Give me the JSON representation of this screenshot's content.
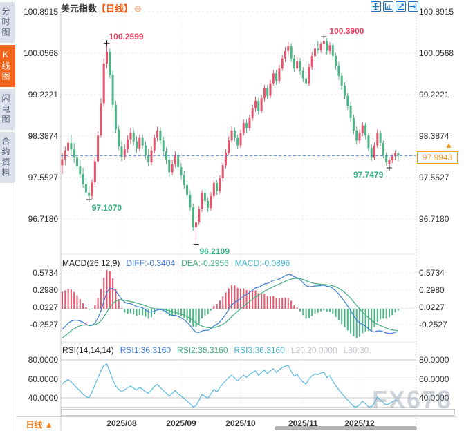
{
  "sidebar": {
    "tabs": [
      {
        "label": "分时图",
        "active": false
      },
      {
        "label": "K线图",
        "active": true
      },
      {
        "label": "闪电图",
        "active": false
      },
      {
        "label": "合约资料",
        "active": false
      }
    ]
  },
  "header": {
    "title": "美元指数",
    "period_tag": "【日线】",
    "collapse_icon": "⊖"
  },
  "toolbar": {
    "icons": [
      "move-tool",
      "axis-scale-tool",
      "axis-zoom-tool",
      "goto-latest-tool"
    ]
  },
  "price_label": {
    "value": "97.9943"
  },
  "bottom_bar": {
    "period_label": "日线",
    "arrow": "▲"
  },
  "watermark": "FX678",
  "colors": {
    "up": "#e4546b",
    "down": "#4bb584",
    "diff_line": "#3a7bd5",
    "dea_line": "#3fae7e",
    "rsi_line": "#54b8e4",
    "accent_orange": "#f59a21",
    "active_tab": "#f2631c",
    "tool_blue": "#1a6fc0",
    "annotation_red": "#e8415f",
    "annotation_green": "#2fb07e",
    "price_line": "#2a7fe0"
  },
  "chart_data": [
    {
      "type": "candlestick",
      "title": "美元指数 日线",
      "yticks": [
        "100.8915",
        "100.0568",
        "99.2221",
        "98.3874",
        "97.5527",
        "96.7180"
      ],
      "ylim": [
        96.05,
        100.93
      ],
      "current_price": 97.9943,
      "xticks": [
        "2025/08",
        "2025/09",
        "2025/10",
        "2025/11",
        "2025/12"
      ],
      "month_start_indices": [
        20,
        40,
        60,
        81,
        100
      ],
      "annotations": [
        {
          "label": "100.2599",
          "index": 15,
          "price": 100.2599,
          "kind": "high"
        },
        {
          "label": "97.1070",
          "index": 9,
          "price": 97.107,
          "kind": "low"
        },
        {
          "label": "96.2109",
          "index": 45,
          "price": 96.2109,
          "kind": "low"
        },
        {
          "label": "100.3900",
          "index": 88,
          "price": 100.39,
          "kind": "high"
        },
        {
          "label": "97.7479",
          "index": 110,
          "price": 97.7479,
          "kind": "low"
        }
      ],
      "candles": [
        [
          97.8,
          98.05,
          97.62,
          97.92
        ],
        [
          97.92,
          98.18,
          97.8,
          98.1
        ],
        [
          98.1,
          98.32,
          97.95,
          98.25
        ],
        [
          98.25,
          98.42,
          98.02,
          98.12
        ],
        [
          98.12,
          98.25,
          97.85,
          97.95
        ],
        [
          97.95,
          98.1,
          97.7,
          97.78
        ],
        [
          97.78,
          97.92,
          97.55,
          97.62
        ],
        [
          97.62,
          97.75,
          97.35,
          97.42
        ],
        [
          97.42,
          97.55,
          97.18,
          97.25
        ],
        [
          97.25,
          97.38,
          97.107,
          97.18
        ],
        [
          97.18,
          97.52,
          97.12,
          97.45
        ],
        [
          97.45,
          97.95,
          97.4,
          97.88
        ],
        [
          97.88,
          98.48,
          97.82,
          98.4
        ],
        [
          98.4,
          99.15,
          98.35,
          99.05
        ],
        [
          99.05,
          99.95,
          98.98,
          99.85
        ],
        [
          99.85,
          100.2599,
          99.75,
          100.08
        ],
        [
          100.08,
          100.15,
          99.55,
          99.62
        ],
        [
          99.62,
          99.7,
          98.95,
          99.02
        ],
        [
          99.02,
          99.1,
          98.45,
          98.52
        ],
        [
          98.52,
          98.6,
          98.1,
          98.18
        ],
        [
          98.18,
          98.3,
          97.88,
          97.96
        ],
        [
          97.96,
          98.22,
          97.9,
          98.12
        ],
        [
          98.12,
          98.4,
          98.05,
          98.32
        ],
        [
          98.32,
          98.55,
          98.22,
          98.46
        ],
        [
          98.46,
          98.52,
          98.2,
          98.28
        ],
        [
          98.28,
          98.38,
          98.05,
          98.14
        ],
        [
          98.14,
          98.42,
          98.08,
          98.35
        ],
        [
          98.35,
          98.42,
          98.12,
          98.2
        ],
        [
          98.2,
          98.28,
          97.92,
          98.0
        ],
        [
          98.0,
          98.12,
          97.78,
          97.86
        ],
        [
          97.86,
          98.18,
          97.8,
          98.1
        ],
        [
          98.1,
          98.42,
          98.04,
          98.35
        ],
        [
          98.35,
          98.58,
          98.28,
          98.5
        ],
        [
          98.5,
          98.56,
          98.22,
          98.3
        ],
        [
          98.3,
          98.38,
          98.0,
          98.08
        ],
        [
          98.08,
          98.16,
          97.82,
          97.9
        ],
        [
          97.9,
          97.98,
          97.58,
          97.66
        ],
        [
          97.66,
          97.9,
          97.6,
          97.82
        ],
        [
          97.82,
          98.08,
          97.76,
          98.0
        ],
        [
          98.0,
          98.06,
          97.7,
          97.76
        ],
        [
          97.76,
          97.84,
          97.52,
          97.6
        ],
        [
          97.6,
          97.68,
          97.32,
          97.4
        ],
        [
          97.4,
          97.48,
          97.12,
          97.2
        ],
        [
          97.2,
          97.28,
          96.88,
          96.95
        ],
        [
          96.95,
          97.02,
          96.48,
          96.55
        ],
        [
          96.55,
          96.7,
          96.2109,
          96.65
        ],
        [
          96.65,
          96.98,
          96.6,
          96.92
        ],
        [
          96.92,
          97.3,
          96.86,
          97.24
        ],
        [
          97.24,
          97.34,
          97.0,
          97.08
        ],
        [
          97.08,
          97.16,
          96.86,
          96.94
        ],
        [
          96.94,
          97.26,
          96.88,
          97.18
        ],
        [
          97.18,
          97.5,
          97.12,
          97.44
        ],
        [
          97.44,
          97.5,
          97.2,
          97.28
        ],
        [
          97.28,
          97.6,
          97.22,
          97.54
        ],
        [
          97.54,
          97.86,
          97.48,
          97.8
        ],
        [
          97.8,
          98.12,
          97.74,
          98.05
        ],
        [
          98.05,
          98.38,
          98.0,
          98.3
        ],
        [
          98.3,
          98.58,
          98.25,
          98.5
        ],
        [
          98.5,
          98.56,
          98.28,
          98.35
        ],
        [
          98.35,
          98.42,
          98.12,
          98.2
        ],
        [
          98.2,
          98.52,
          98.15,
          98.45
        ],
        [
          98.45,
          98.72,
          98.4,
          98.65
        ],
        [
          98.65,
          98.72,
          98.45,
          98.55
        ],
        [
          98.55,
          98.82,
          98.5,
          98.75
        ],
        [
          98.75,
          99.02,
          98.7,
          98.95
        ],
        [
          98.95,
          99.18,
          98.88,
          99.1
        ],
        [
          99.1,
          99.16,
          98.82,
          98.9
        ],
        [
          98.9,
          99.22,
          98.85,
          99.15
        ],
        [
          99.15,
          99.42,
          99.08,
          99.35
        ],
        [
          99.35,
          99.42,
          99.12,
          99.2
        ],
        [
          99.2,
          99.52,
          99.15,
          99.45
        ],
        [
          99.45,
          99.72,
          99.4,
          99.65
        ],
        [
          99.65,
          99.72,
          99.42,
          99.5
        ],
        [
          99.5,
          99.82,
          99.45,
          99.75
        ],
        [
          99.75,
          100.02,
          99.7,
          99.95
        ],
        [
          99.95,
          100.18,
          99.88,
          100.1
        ],
        [
          100.1,
          100.28,
          100.02,
          100.2
        ],
        [
          100.2,
          100.26,
          99.88,
          99.95
        ],
        [
          99.95,
          100.02,
          99.68,
          99.75
        ],
        [
          99.75,
          99.98,
          99.7,
          99.9
        ],
        [
          99.9,
          99.96,
          99.62,
          99.7
        ],
        [
          99.7,
          99.78,
          99.48,
          99.55
        ],
        [
          99.55,
          99.62,
          99.38,
          99.45
        ],
        [
          99.45,
          99.85,
          99.4,
          99.78
        ],
        [
          99.78,
          100.08,
          99.72,
          100.0
        ],
        [
          100.0,
          100.22,
          99.95,
          100.15
        ],
        [
          100.15,
          100.3,
          100.05,
          100.12
        ],
        [
          100.12,
          100.28,
          100.06,
          100.24
        ],
        [
          100.24,
          100.39,
          100.1,
          100.3
        ],
        [
          100.3,
          100.36,
          100.02,
          100.1
        ],
        [
          100.1,
          100.28,
          100.04,
          100.22
        ],
        [
          100.22,
          100.26,
          99.92,
          100.0
        ],
        [
          100.0,
          100.06,
          99.72,
          99.8
        ],
        [
          99.8,
          99.88,
          99.52,
          99.6
        ],
        [
          99.6,
          99.66,
          99.32,
          99.4
        ],
        [
          99.4,
          99.48,
          99.12,
          99.2
        ],
        [
          99.2,
          99.26,
          98.92,
          99.0
        ],
        [
          99.0,
          99.08,
          98.68,
          98.75
        ],
        [
          98.75,
          98.82,
          98.42,
          98.5
        ],
        [
          98.5,
          98.58,
          98.22,
          98.3
        ],
        [
          98.3,
          98.52,
          98.24,
          98.45
        ],
        [
          98.45,
          98.68,
          98.38,
          98.6
        ],
        [
          98.6,
          98.66,
          98.32,
          98.4
        ],
        [
          98.4,
          98.46,
          98.08,
          98.15
        ],
        [
          98.15,
          98.22,
          97.88,
          97.95
        ],
        [
          97.95,
          98.26,
          97.9,
          98.2
        ],
        [
          98.2,
          98.52,
          98.15,
          98.45
        ],
        [
          98.45,
          98.5,
          98.18,
          98.25
        ],
        [
          98.25,
          98.3,
          97.94,
          98.0
        ],
        [
          98.0,
          98.06,
          97.8,
          97.86
        ],
        [
          97.82,
          97.95,
          97.7479,
          97.9
        ],
        [
          97.9,
          98.02,
          97.84,
          97.98
        ],
        [
          97.98,
          98.1,
          97.9,
          98.04
        ],
        [
          98.04,
          98.08,
          97.88,
          97.9943
        ]
      ]
    },
    {
      "type": "bar",
      "name": "MACD",
      "derived_from": "chart_data.0.candles",
      "labels": {
        "params": "MACD(26,12,9)",
        "diff": "DIFF:-0.3404",
        "dea": "DEA:-0.2956",
        "macd": "MACD:-0.0896"
      },
      "diff": -0.3404,
      "dea": -0.2956,
      "macd": -0.0896,
      "yticks": [
        "0.5734",
        "0.2980",
        "0.0227",
        "-0.2527"
      ]
    },
    {
      "type": "line",
      "name": "RSI",
      "derived_from": "chart_data.0.candles",
      "labels": {
        "params": "RSI(14,14,14)",
        "rsi1": "RSI1:36.3160",
        "rsi2": "RSI2:36.3160",
        "rsi3": "RSI3:36.3160",
        "l20": "L20:20.0000",
        "l30": "L30:30."
      },
      "rsi1": 36.316,
      "rsi2": 36.316,
      "rsi3": 36.316,
      "yticks": [
        "80.0000",
        "60.0000",
        "40.0000"
      ]
    }
  ]
}
